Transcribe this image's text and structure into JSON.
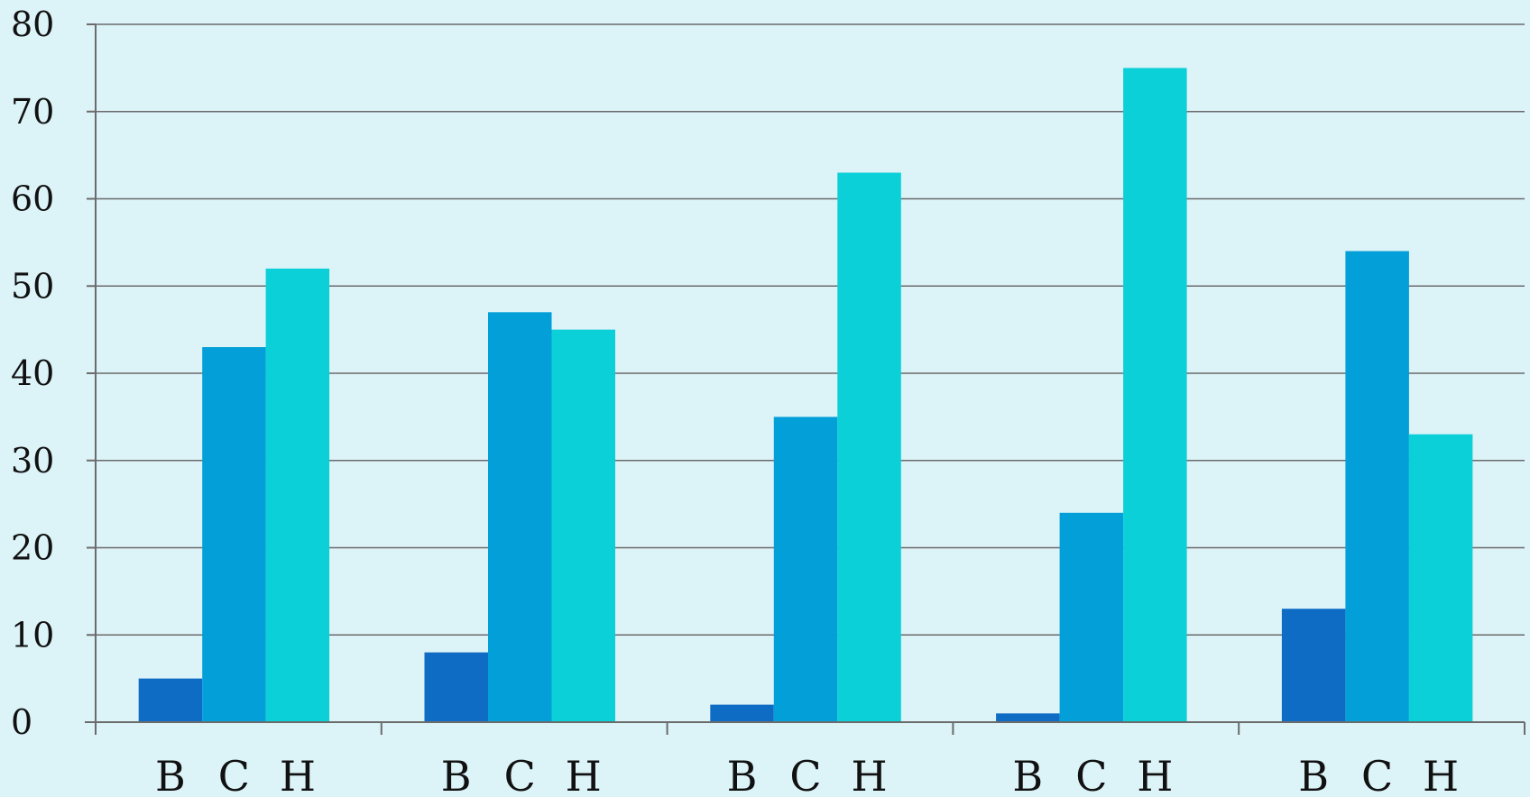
{
  "chart_data": {
    "type": "bar",
    "title": "",
    "xlabel": "",
    "ylabel": "",
    "ylim": [
      0,
      80
    ],
    "yticks": [
      0,
      10,
      20,
      30,
      40,
      50,
      60,
      70,
      80
    ],
    "ytick_labels": [
      "0",
      "10",
      "20",
      "30",
      "40",
      "50",
      "60",
      "70",
      "80"
    ],
    "grid": true,
    "legend": "none",
    "groups": [
      {
        "categories": [
          "B",
          "C",
          "H"
        ],
        "values": [
          5,
          43,
          52
        ]
      },
      {
        "categories": [
          "B",
          "C",
          "H"
        ],
        "values": [
          8,
          47,
          45
        ]
      },
      {
        "categories": [
          "B",
          "C",
          "H"
        ],
        "values": [
          2,
          35,
          63
        ]
      },
      {
        "categories": [
          "B",
          "C",
          "H"
        ],
        "values": [
          1,
          24,
          75
        ]
      },
      {
        "categories": [
          "B",
          "C",
          "H"
        ],
        "values": [
          13,
          54,
          33
        ]
      }
    ]
  },
  "colors": {
    "background": "#dcf3f8",
    "bar_B": "#0f6cc4",
    "bar_C": "#039fd8",
    "bar_H": "#0cd0d8",
    "grid": "#6b6b6b",
    "axis": "#6b6b6b",
    "text": "#111111"
  }
}
